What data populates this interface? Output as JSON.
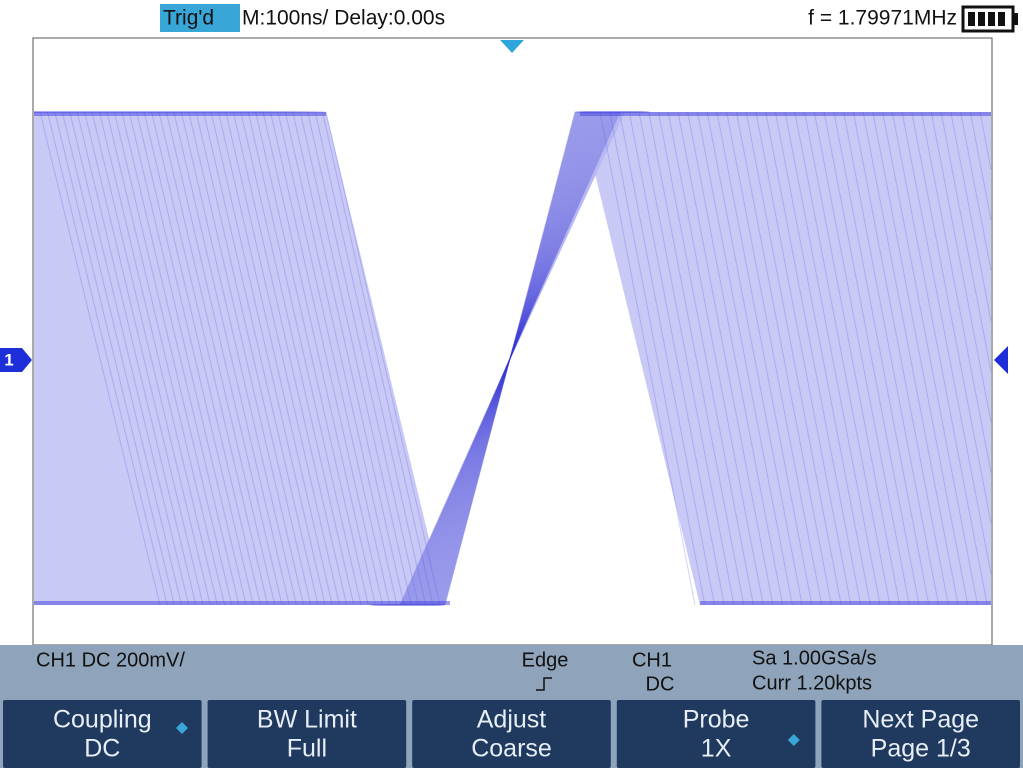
{
  "header": {
    "trigger_status": "Trig'd",
    "timebase": "M:100ns/ Delay:0.00s",
    "frequency": "f = 1.79971MHz"
  },
  "channel_marker": "1",
  "status_bar": {
    "channel_setting": "CH1 DC 200mV/",
    "trigger_type": "Edge",
    "trigger_source": "CH1",
    "trigger_coupling": "DC",
    "sample_rate": "Sa 1.00GSa/s",
    "memory_depth": "Curr 1.20kpts"
  },
  "menu": [
    {
      "label": "Coupling",
      "value": "DC"
    },
    {
      "label": "BW Limit",
      "value": "Full"
    },
    {
      "label": "Adjust",
      "value": "Coarse"
    },
    {
      "label": "Probe",
      "value": "1X"
    },
    {
      "label": "Next Page",
      "value": "Page 1/3"
    }
  ]
}
